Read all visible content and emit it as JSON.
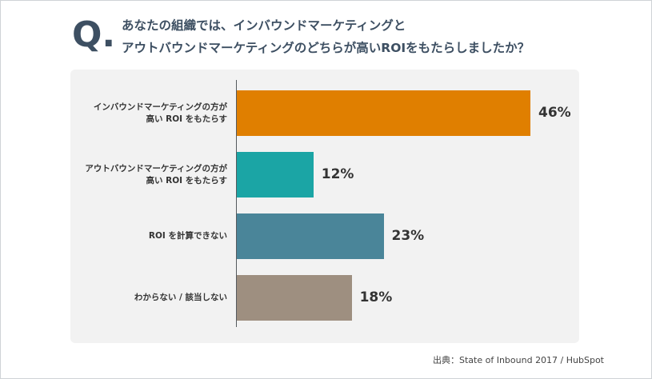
{
  "question": {
    "mark": "Q.",
    "line1": "あなたの組織では、インバウンドマーケティングと",
    "line2": "アウトバウンドマーケティングのどちらが高いROIをもたらしましたか？"
  },
  "chart_data": {
    "type": "bar",
    "orientation": "horizontal",
    "categories": [
      [
        "インバウンドマーケティングの方が",
        "高い ROI をもたらす"
      ],
      [
        "アウトバウンドマーケティングの方が",
        "高い ROI をもたらす"
      ],
      [
        "ROI を計算できない"
      ],
      [
        "わからない / 該当しない"
      ]
    ],
    "values": [
      46,
      12,
      23,
      18
    ],
    "value_labels": [
      "46%",
      "12%",
      "23%",
      "18%"
    ],
    "colors": [
      "#e07f00",
      "#1ba5a5",
      "#4a8599",
      "#9e8f80"
    ],
    "xlim": [
      0,
      50
    ],
    "grid": false
  },
  "source": "出典：State of Inbound 2017 / HubSpot"
}
